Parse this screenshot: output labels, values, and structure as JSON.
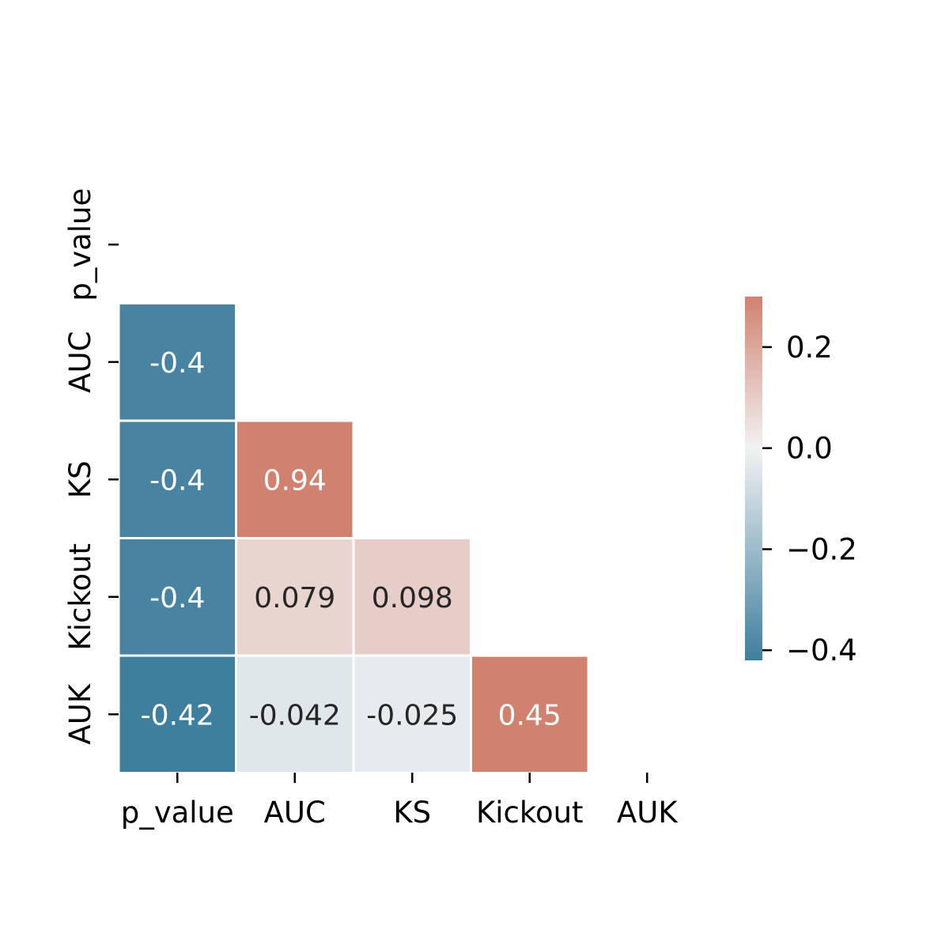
{
  "chart_data": {
    "type": "heatmap",
    "variant": "lower-triangle correlation matrix",
    "rows": [
      "p_value",
      "AUC",
      "KS",
      "Kickout",
      "AUK"
    ],
    "cols": [
      "p_value",
      "AUC",
      "KS",
      "Kickout",
      "AUK"
    ],
    "cells": [
      {
        "row": 1,
        "col": 0,
        "value": -0.4,
        "label": "-0.4"
      },
      {
        "row": 2,
        "col": 0,
        "value": -0.4,
        "label": "-0.4"
      },
      {
        "row": 2,
        "col": 1,
        "value": 0.94,
        "label": "0.94"
      },
      {
        "row": 3,
        "col": 0,
        "value": -0.4,
        "label": "-0.4"
      },
      {
        "row": 3,
        "col": 1,
        "value": 0.079,
        "label": "0.079"
      },
      {
        "row": 3,
        "col": 2,
        "value": 0.098,
        "label": "0.098"
      },
      {
        "row": 4,
        "col": 0,
        "value": -0.42,
        "label": "-0.42"
      },
      {
        "row": 4,
        "col": 1,
        "value": -0.042,
        "label": "-0.042"
      },
      {
        "row": 4,
        "col": 2,
        "value": -0.025,
        "label": "-0.025"
      },
      {
        "row": 4,
        "col": 3,
        "value": 0.45,
        "label": "0.45"
      }
    ],
    "colorbar": {
      "vmin": -0.42,
      "vmax": 0.3,
      "ticks": [
        0.2,
        0.0,
        -0.2,
        -0.4
      ],
      "tick_labels": [
        "0.2",
        "0.0",
        "−0.2",
        "−0.4"
      ],
      "low_color": "#3f7f9e",
      "mid_color": "#f2f2f2",
      "high_color": "#d0826f"
    },
    "title": "",
    "xlabel": "",
    "ylabel": ""
  }
}
